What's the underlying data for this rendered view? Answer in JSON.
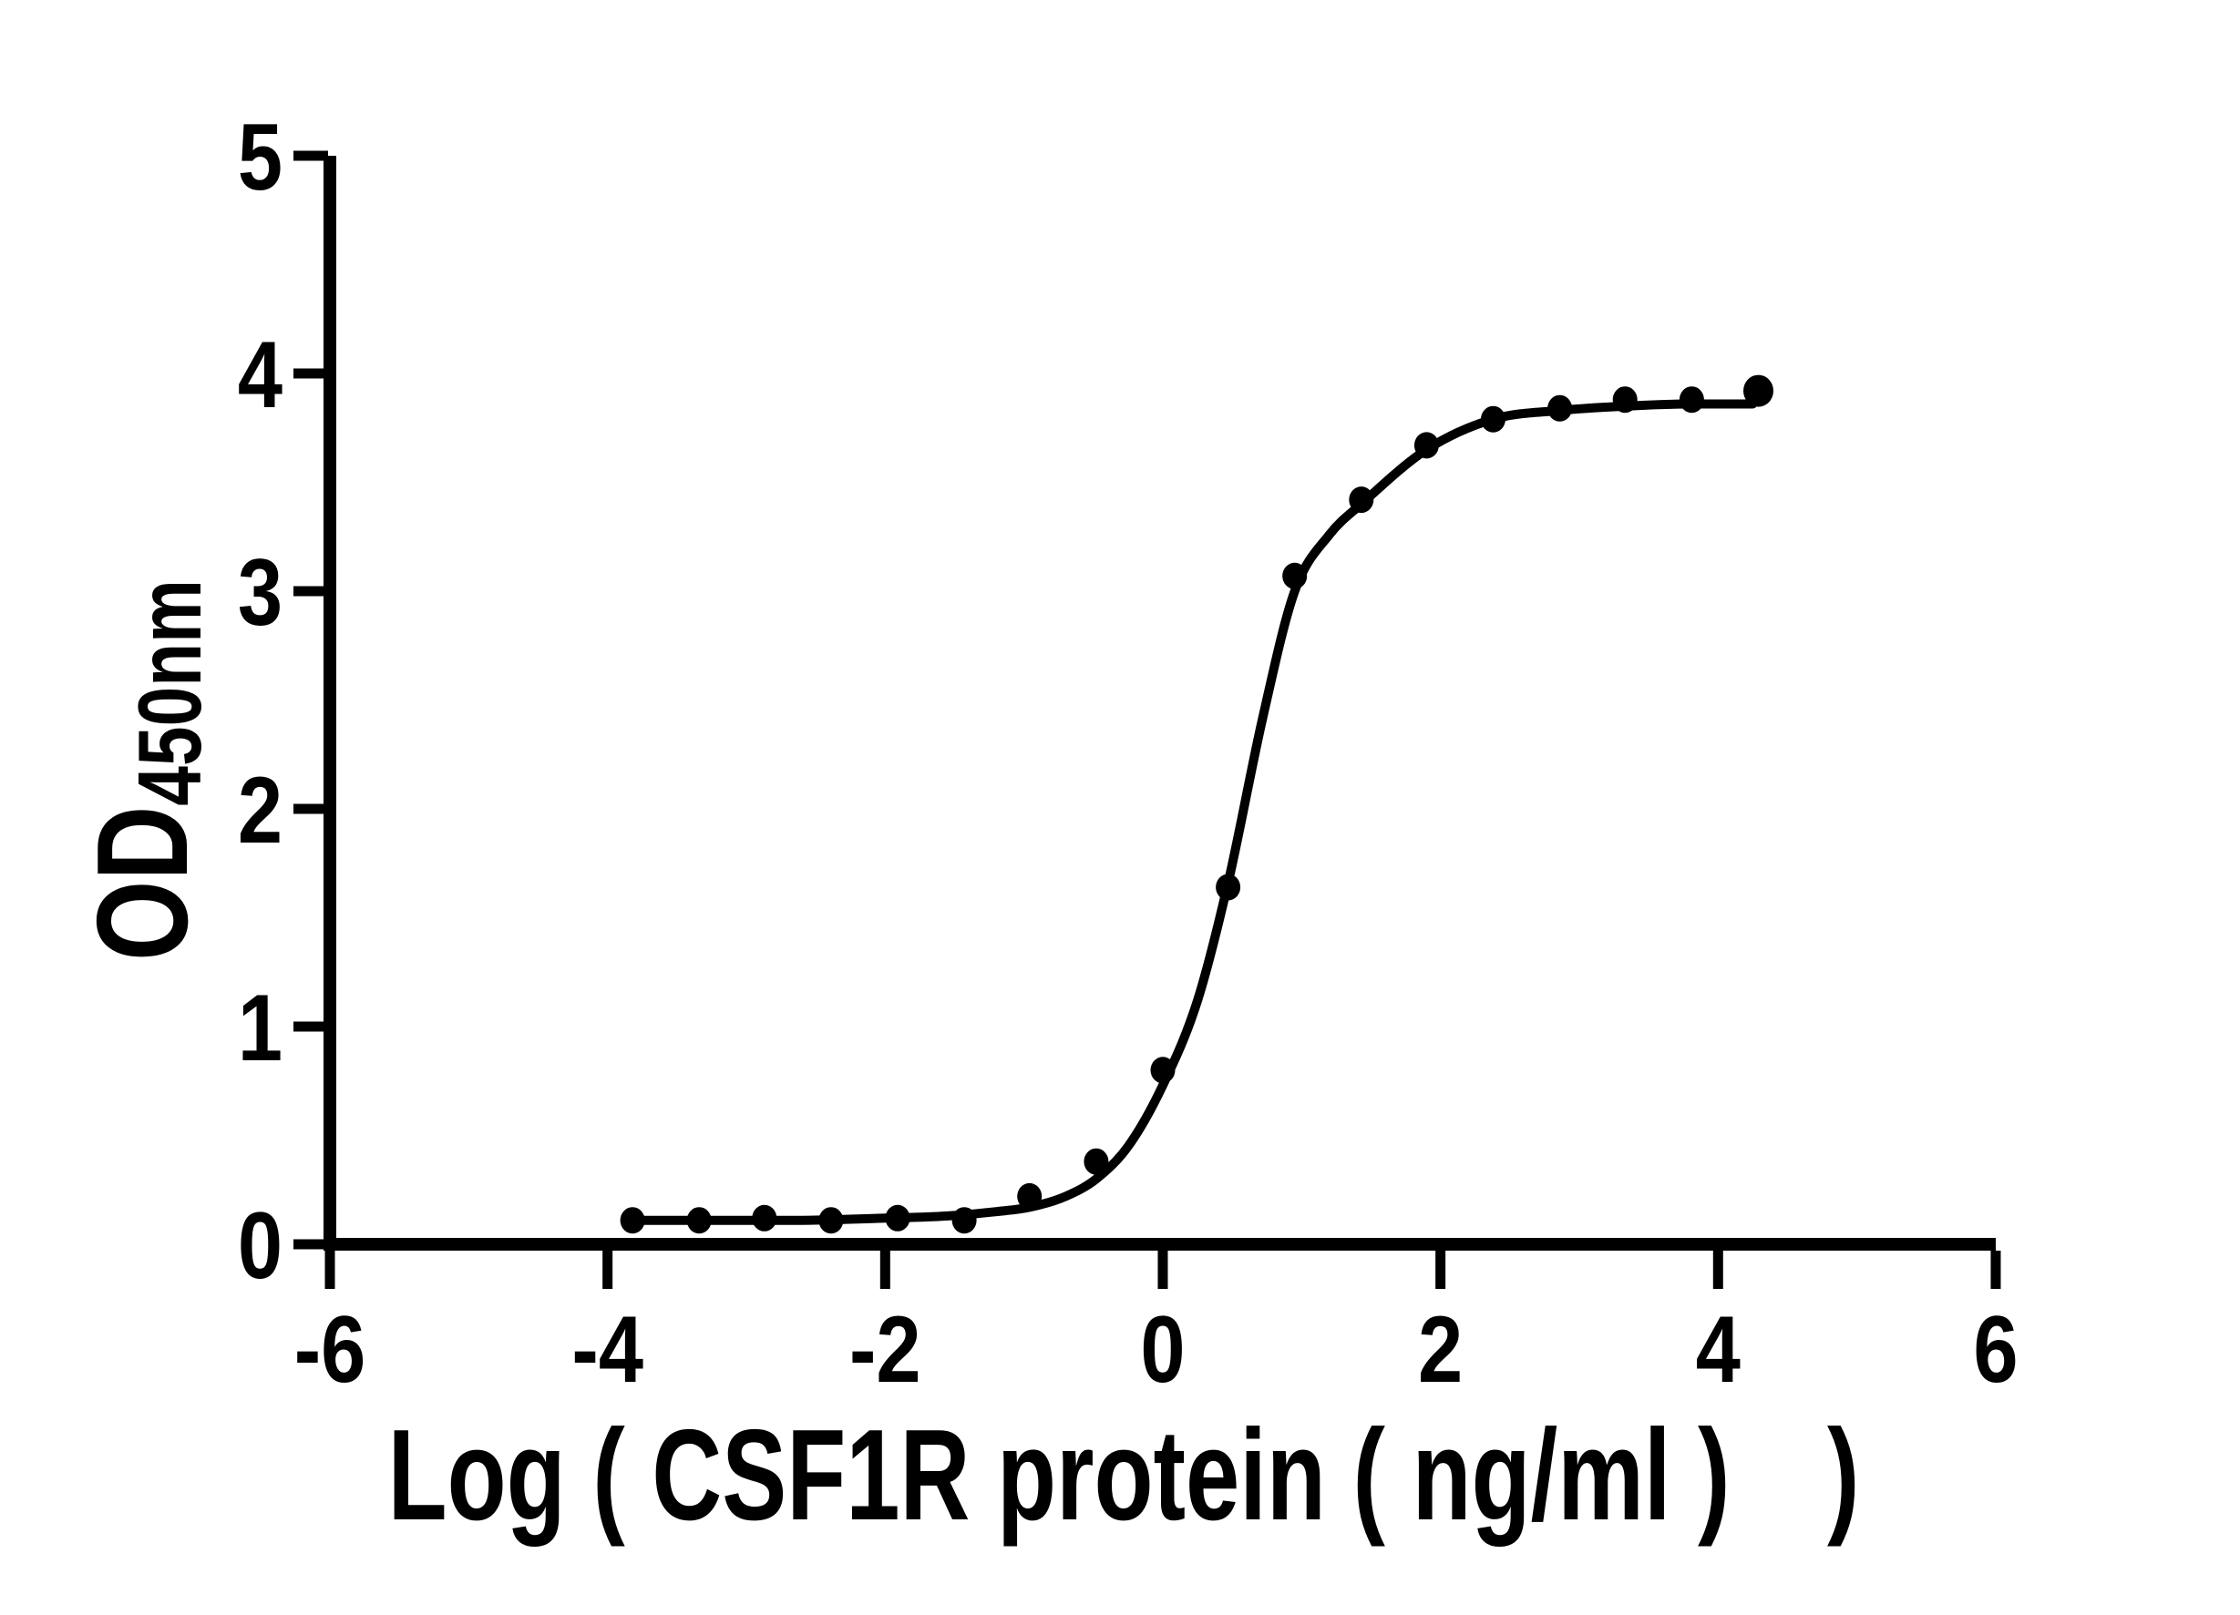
{
  "figure": {
    "background": "#ffffff",
    "ink_color": "#000000"
  },
  "chart_data": {
    "type": "scatter",
    "subtype": "sigmoidal dose-response curve with fitted line (ELISA activity assay)",
    "title": "",
    "xlabel": "Log ( CSF1R protein ( ng/ml ) )",
    "ylabel_main": "OD",
    "ylabel_sub": "450nm",
    "xlim": [
      -6,
      6
    ],
    "ylim": [
      0,
      5
    ],
    "grid": false,
    "legend": "none",
    "x_tick_values": [
      -6,
      -4,
      -2,
      0,
      2,
      4,
      6
    ],
    "x_tick_labels": [
      "-6",
      "-4",
      "-2",
      "0",
      "2",
      "4",
      "6"
    ],
    "y_tick_values": [
      0,
      1,
      2,
      3,
      4,
      5
    ],
    "y_tick_labels": [
      "0",
      "1",
      "2",
      "3",
      "4",
      "5"
    ],
    "series": [
      {
        "name": "measured-od-points",
        "type": "scatter",
        "marker": "filled-circle",
        "color": "#000000",
        "x": [
          -3.82,
          -3.34,
          -2.87,
          -2.39,
          -1.91,
          -1.43,
          -0.96,
          -0.48,
          0.0,
          0.47,
          0.95,
          1.43,
          1.9,
          2.38,
          2.86,
          3.33,
          3.81,
          4.29
        ],
        "y": [
          0.11,
          0.11,
          0.12,
          0.11,
          0.12,
          0.11,
          0.22,
          0.38,
          0.8,
          1.64,
          3.07,
          3.42,
          3.67,
          3.79,
          3.84,
          3.88,
          3.88,
          3.92
        ]
      },
      {
        "name": "fit-curve",
        "type": "line",
        "color": "#000000",
        "x": [
          -3.85,
          -3.2,
          -2.6,
          -2.0,
          -1.55,
          -1.2,
          -0.96,
          -0.7,
          -0.48,
          -0.25,
          0.0,
          0.25,
          0.47,
          0.72,
          0.95,
          1.2,
          1.43,
          1.9,
          2.38,
          2.86,
          3.33,
          3.81,
          4.25
        ],
        "y": [
          0.11,
          0.11,
          0.11,
          0.12,
          0.13,
          0.15,
          0.17,
          0.22,
          0.3,
          0.45,
          0.73,
          1.12,
          1.66,
          2.42,
          3.0,
          3.26,
          3.4,
          3.65,
          3.79,
          3.83,
          3.85,
          3.86,
          3.86
        ]
      }
    ]
  }
}
